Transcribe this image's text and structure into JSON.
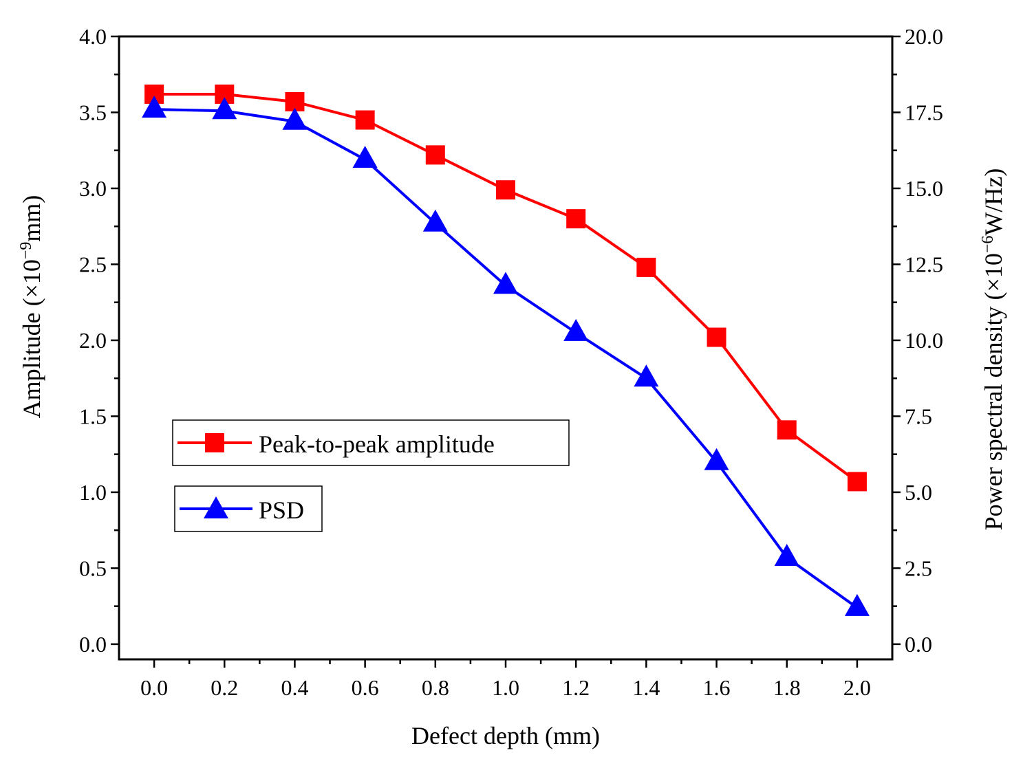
{
  "chart_data": {
    "type": "line",
    "x": [
      0.0,
      0.2,
      0.4,
      0.6,
      0.8,
      1.0,
      1.2,
      1.4,
      1.6,
      1.8,
      2.0
    ],
    "x_tick_labels": [
      "0.0",
      "0.2",
      "0.4",
      "0.6",
      "0.8",
      "1.0",
      "1.2",
      "1.4",
      "1.6",
      "1.8",
      "2.0"
    ],
    "xlabel": "Defect depth (mm)",
    "xlim": [
      -0.1,
      2.1
    ],
    "ylabel_left": {
      "prefix": "Amplitude (×10",
      "exponent": "−9",
      "suffix": "mm)"
    },
    "ylabel_right": {
      "prefix": "Power spectral density (×10",
      "exponent": "−6",
      "suffix": "W/Hz)"
    },
    "ylim_left": [
      -0.1,
      4.0
    ],
    "ylim_right": [
      -0.5,
      20.0
    ],
    "y_ticks_left": [
      "0.0",
      "0.5",
      "1.0",
      "1.5",
      "2.0",
      "2.5",
      "3.0",
      "3.5",
      "4.0"
    ],
    "y_ticks_right": [
      "0.0",
      "2.5",
      "5.0",
      "7.5",
      "10.0",
      "12.5",
      "15.0",
      "17.5",
      "20.0"
    ],
    "series": [
      {
        "name": "Peak-to-peak amplitude",
        "axis": "left",
        "color": "#ff0000",
        "marker": "square",
        "values": [
          3.62,
          3.62,
          3.57,
          3.45,
          3.22,
          2.99,
          2.8,
          2.48,
          2.02,
          1.41,
          1.07
        ]
      },
      {
        "name": "PSD",
        "axis": "right",
        "color": "#0000ff",
        "marker": "triangle",
        "values": [
          17.6,
          17.55,
          17.2,
          15.95,
          13.85,
          11.8,
          10.25,
          8.75,
          6.0,
          2.85,
          1.2
        ]
      }
    ],
    "legend": [
      {
        "label": "Peak-to-peak amplitude",
        "color": "#ff0000",
        "marker": "square"
      },
      {
        "label": "PSD",
        "color": "#0000ff",
        "marker": "triangle"
      }
    ],
    "legend_position": "center-left",
    "grid": false
  }
}
